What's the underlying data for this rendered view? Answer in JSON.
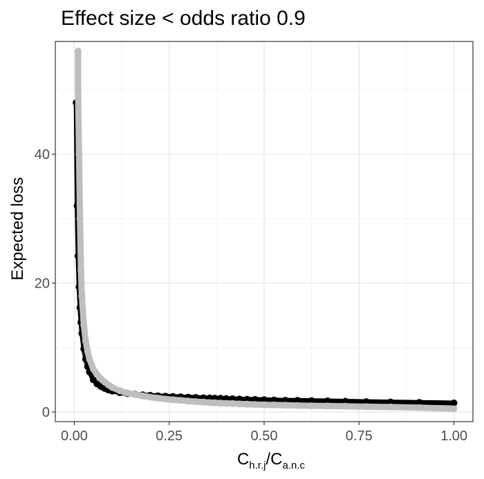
{
  "chart_data": {
    "type": "scatter",
    "title": "Effect size < odds ratio 0.9",
    "ylabel": "Expected loss",
    "xlabel": {
      "c1_main": "C",
      "c1_sub": "h.r.j",
      "slash": "/",
      "c2_main": "C",
      "c2_sub": "a.n.c"
    },
    "xlim": [
      -0.05,
      1.05
    ],
    "ylim": [
      -1.5,
      57.5
    ],
    "x_ticks": [
      0,
      0.25,
      0.5,
      0.75,
      1.0
    ],
    "x_tick_labels": [
      "0.00",
      "0.25",
      "0.50",
      "0.75",
      "1.00"
    ],
    "y_ticks": [
      0,
      20,
      40
    ],
    "y_tick_labels": [
      "0",
      "20",
      "40"
    ],
    "grid": true,
    "legend": "none",
    "series": [
      {
        "color": "#000000",
        "x": [
          0.005,
          0.0075,
          0.01,
          0.0125,
          0.015,
          0.0175,
          0.02,
          0.025,
          0.03,
          0.035,
          0.04,
          0.05,
          0.06,
          0.07,
          0.08,
          0.09,
          0.1,
          0.12,
          0.14,
          0.16,
          0.18,
          0.2,
          0.22,
          0.24,
          0.26,
          0.28,
          0.3,
          0.32,
          0.34,
          0.357,
          0.37,
          0.385,
          0.4,
          0.417,
          0.435,
          0.455,
          0.476,
          0.5,
          0.526,
          0.556,
          0.588,
          0.625,
          0.667,
          0.714,
          0.769,
          0.833,
          0.909,
          1.0
        ],
        "y": [
          48.0,
          32.0,
          24.2,
          19.4,
          16.2,
          13.9,
          12.2,
          9.8,
          8.2,
          7.05,
          6.2,
          5.0,
          4.35,
          3.95,
          3.65,
          3.4,
          3.25,
          3.0,
          2.85,
          2.75,
          2.65,
          2.58,
          2.5,
          2.45,
          2.4,
          2.35,
          2.3,
          2.25,
          2.2,
          2.17,
          2.14,
          2.11,
          2.08,
          2.05,
          2.0,
          1.97,
          1.94,
          1.9,
          1.86,
          1.82,
          1.8,
          1.76,
          1.72,
          1.66,
          1.6,
          1.55,
          1.48,
          1.4
        ]
      },
      {
        "color": "#bebebe",
        "x": [
          0.01,
          0.01,
          0.0125,
          0.015,
          0.0175,
          0.02,
          0.025,
          0.03,
          0.035,
          0.04,
          0.05,
          0.06,
          0.07,
          0.08,
          0.09,
          0.1,
          0.12,
          0.14,
          0.16,
          0.18,
          0.2,
          0.22,
          0.24,
          0.26,
          0.28,
          0.3,
          0.32,
          0.34,
          0.357,
          0.37,
          0.385,
          0.4,
          0.417,
          0.435,
          0.455,
          0.476,
          0.5,
          0.526,
          0.556,
          0.588,
          0.625,
          0.667,
          0.714,
          0.769,
          0.833,
          0.909,
          1.0
        ],
        "y": [
          56.0,
          50.0,
          40.0,
          30.0,
          22.0,
          18.0,
          13.5,
          11.0,
          9.4,
          8.2,
          6.7,
          5.8,
          5.15,
          4.65,
          4.2,
          3.8,
          3.3,
          2.95,
          2.7,
          2.5,
          2.3,
          2.15,
          2.0,
          1.9,
          1.8,
          1.7,
          1.6,
          1.52,
          1.45,
          1.42,
          1.38,
          1.33,
          1.3,
          1.25,
          1.2,
          1.16,
          1.12,
          1.08,
          1.04,
          1.0,
          0.96,
          0.92,
          0.88,
          0.82,
          0.76,
          0.68,
          0.5
        ]
      }
    ]
  }
}
